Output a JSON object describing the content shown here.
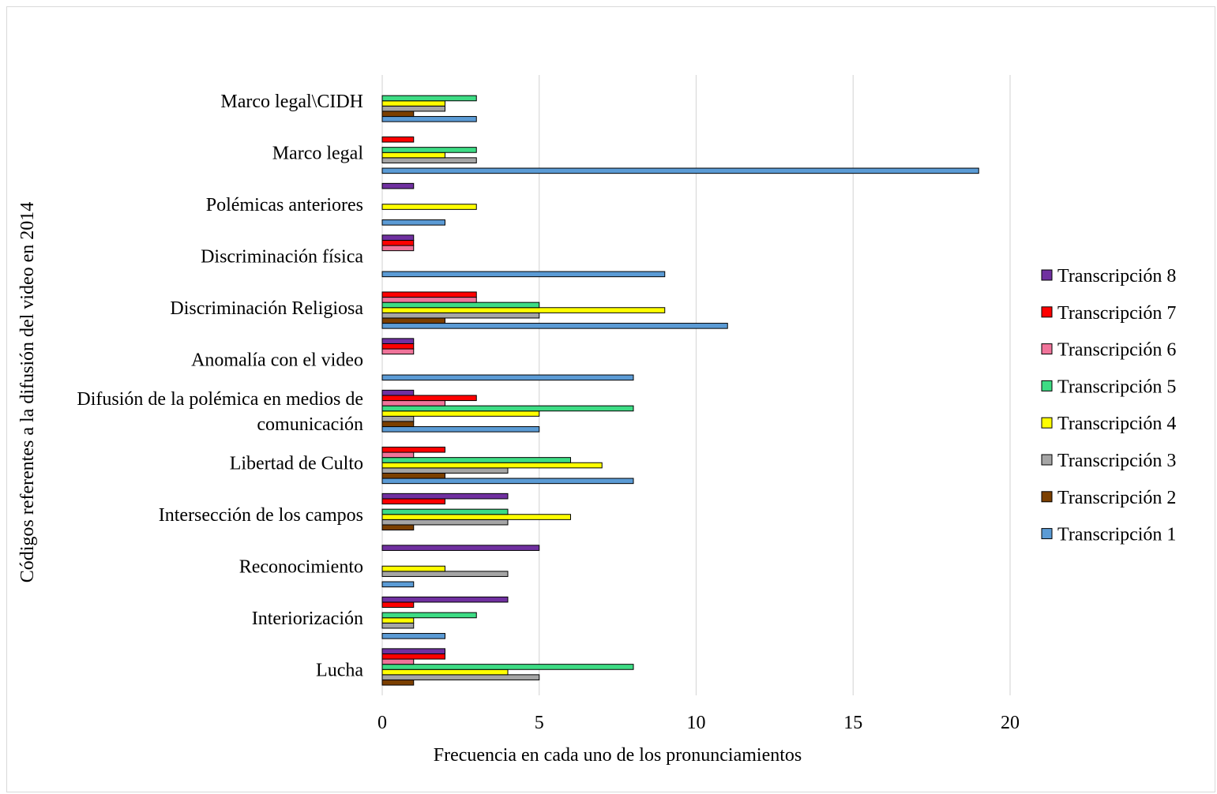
{
  "chart_data": {
    "type": "bar",
    "orientation": "horizontal",
    "title": "",
    "xlabel": "Frecuencia en cada uno de los pronunciamientos",
    "ylabel": "Códigos referentes a la difusión del video en 2014",
    "xlim": [
      0,
      20
    ],
    "xticks": [
      0,
      5,
      10,
      15,
      20
    ],
    "grid": "vertical",
    "legend_position": "right",
    "categories": [
      "Lucha",
      "Interiorización",
      "Reconocimiento",
      "Intersección de los campos",
      "Libertad de Culto",
      "Difusión de la polémica en medios de comunicación",
      "Anomalía con el video",
      "Discriminación Religiosa",
      "Discriminación física",
      "Polémicas anteriores",
      "Marco legal",
      "Marco legal\\CIDH"
    ],
    "category_lines": [
      [
        "Lucha"
      ],
      [
        "Interiorización"
      ],
      [
        "Reconocimiento"
      ],
      [
        "Intersección de los campos"
      ],
      [
        "Libertad de Culto"
      ],
      [
        "Difusión de la polémica en medios de",
        "comunicación"
      ],
      [
        "Anomalía con el video"
      ],
      [
        "Discriminación Religiosa"
      ],
      [
        "Discriminación física"
      ],
      [
        "Polémicas anteriores"
      ],
      [
        "Marco legal"
      ],
      [
        "Marco legal\\CIDH"
      ]
    ],
    "series": [
      {
        "name": "Transcripción 1",
        "color": "#5b9bd5",
        "values": [
          0,
          2,
          1,
          0,
          8,
          5,
          8,
          11,
          9,
          2,
          19,
          3
        ]
      },
      {
        "name": "Transcripción 2",
        "color": "#7b3f00",
        "values": [
          1,
          0,
          0,
          1,
          2,
          1,
          0,
          2,
          0,
          0,
          0,
          1
        ]
      },
      {
        "name": "Transcripción 3",
        "color": "#a5a5a5",
        "values": [
          5,
          1,
          4,
          4,
          4,
          1,
          0,
          5,
          0,
          0,
          3,
          2
        ]
      },
      {
        "name": "Transcripción 4",
        "color": "#ffff00",
        "values": [
          4,
          1,
          2,
          6,
          7,
          5,
          0,
          9,
          0,
          3,
          2,
          2
        ]
      },
      {
        "name": "Transcripción 5",
        "color": "#3ddc84",
        "values": [
          8,
          3,
          0,
          4,
          6,
          8,
          0,
          5,
          0,
          0,
          3,
          3
        ]
      },
      {
        "name": "Transcripción 6",
        "color": "#f0749a",
        "values": [
          1,
          0,
          0,
          0,
          1,
          2,
          1,
          3,
          1,
          0,
          0,
          0
        ]
      },
      {
        "name": "Transcripción 7",
        "color": "#ff0000",
        "values": [
          2,
          1,
          0,
          2,
          2,
          3,
          1,
          3,
          1,
          0,
          1,
          0
        ]
      },
      {
        "name": "Transcripción 8",
        "color": "#7030a0",
        "values": [
          2,
          4,
          5,
          4,
          0,
          1,
          1,
          0,
          1,
          1,
          0,
          0
        ]
      }
    ]
  }
}
